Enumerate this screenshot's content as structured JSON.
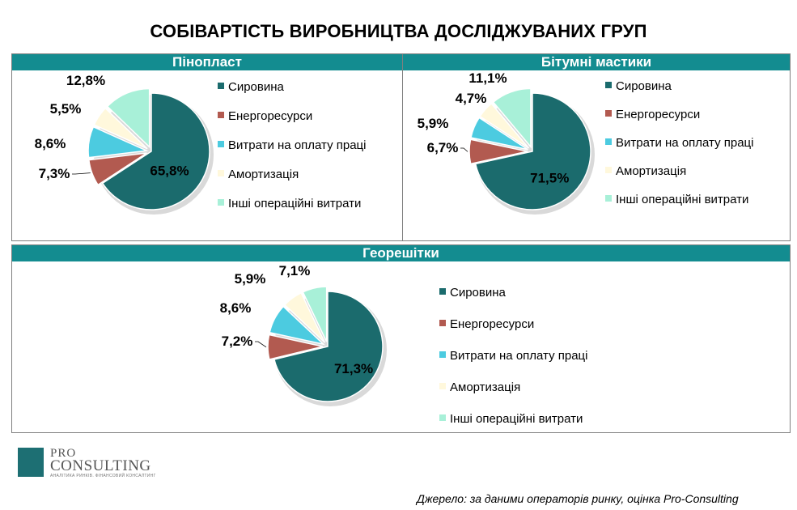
{
  "title": "СОБІВАРТІСТЬ ВИРОБНИЦТВА ДОСЛІДЖУВАНИХ ГРУП",
  "colors": {
    "header": "#138c90",
    "series": [
      "#1b6b6d",
      "#b25a50",
      "#4ccbe0",
      "#fff8dc",
      "#a8f0d8"
    ]
  },
  "legend_labels": [
    "Сировина",
    "Енергоресурси",
    "Витрати на оплату праці",
    "Амортизація",
    "Інші операційні витрати"
  ],
  "chart_data": [
    {
      "type": "pie",
      "title": "Пінопласт",
      "categories": [
        "Сировина",
        "Енергоресурси",
        "Витрати на оплату праці",
        "Амортизація",
        "Інші операційні витрати"
      ],
      "values": [
        65.8,
        7.3,
        8.6,
        5.5,
        12.8
      ],
      "value_labels": [
        "65,8%",
        "7,3%",
        "8,6%",
        "5,5%",
        "12,8%"
      ],
      "legend_position": "right"
    },
    {
      "type": "pie",
      "title": "Бітумні мастики",
      "categories": [
        "Сировина",
        "Енергоресурси",
        "Витрати на оплату праці",
        "Амортизація",
        "Інші операційні витрати"
      ],
      "values": [
        71.5,
        6.7,
        5.9,
        4.7,
        11.1
      ],
      "value_labels": [
        "71,5%",
        "6,7%",
        "5,9%",
        "4,7%",
        "11,1%"
      ],
      "legend_position": "right"
    },
    {
      "type": "pie",
      "title": "Георешітки",
      "categories": [
        "Сировина",
        "Енергоресурси",
        "Витрати на оплату праці",
        "Амортизація",
        "Інші операційні витрати"
      ],
      "values": [
        71.3,
        7.2,
        8.6,
        5.9,
        7.1
      ],
      "value_labels": [
        "71,3%",
        "7,2%",
        "8,6%",
        "5,9%",
        "7,1%"
      ],
      "legend_position": "right"
    }
  ],
  "logo": {
    "line1": "PRO",
    "line2": "CONSULTING",
    "tagline": "АНАЛІТИКА РИНКІВ. ФІНАНСОВИЙ КОНСАЛТИНГ"
  },
  "source": "Джерело: за даними операторів ринку, оцінка Pro-Consulting"
}
